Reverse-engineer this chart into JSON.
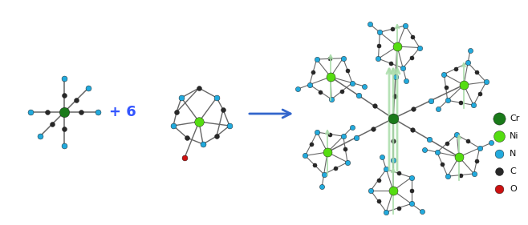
{
  "background_color": "#ffffff",
  "figsize": [
    6.58,
    2.81
  ],
  "dpi": 100,
  "legend_items": [
    {
      "label": "Cr",
      "color": "#1a7a1a"
    },
    {
      "label": "Ni",
      "color": "#55dd11"
    },
    {
      "label": "N",
      "color": "#22aadd"
    },
    {
      "label": "C",
      "color": "#282828"
    },
    {
      "label": "O",
      "color": "#cc1111"
    }
  ],
  "plus_text": "+ 6",
  "plus_color": "#3355ff",
  "plus_fontsize": 13,
  "plus_fontweight": "bold",
  "arrow_color": "#3366cc",
  "cr_color": "#1a7a1a",
  "ni_color": "#55dd11",
  "n_color": "#22aadd",
  "c_color": "#282828",
  "o_color": "#cc1111",
  "cr_size": 80,
  "ni_size": 70,
  "n_size": 25,
  "c_size": 18,
  "o_size": 25,
  "cr_size_legend": 120,
  "ni_size_legend": 100,
  "n_size_legend": 60,
  "c_size_legend": 50,
  "o_size_legend": 60,
  "spin_arrow_color": "#aaddaa",
  "spin_arrow_alpha": 0.85
}
